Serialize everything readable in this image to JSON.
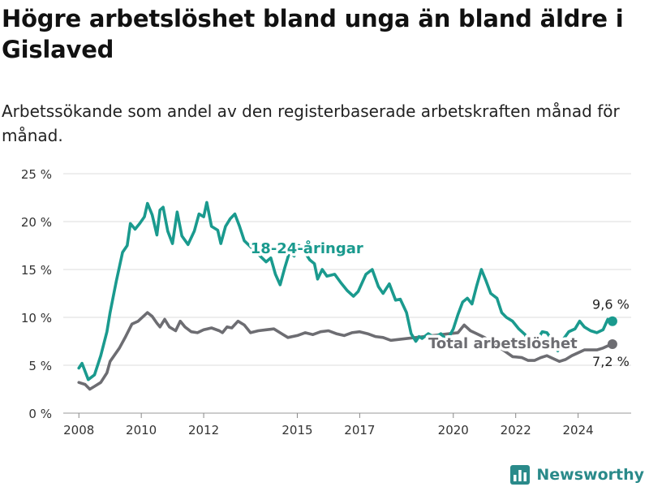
{
  "header": {
    "title": "Högre arbetslöshet bland unga än bland äldre i Gislaved",
    "subtitle": "Arbetssökande som andel av den registerbaserade arbetskraften månad för månad."
  },
  "brand": {
    "name": "Newsworthy",
    "icon": "bar-chart-icon",
    "color": "#2a8a8a"
  },
  "chart_data": {
    "type": "line",
    "ylim": [
      0,
      25
    ],
    "xlim": [
      2007.5,
      2025.7
    ],
    "y_ticks": [
      0,
      5,
      10,
      15,
      20,
      25
    ],
    "y_tick_labels": [
      "0 %",
      "5 %",
      "10 %",
      "15 %",
      "20 %",
      "25 %"
    ],
    "x_ticks": [
      2008,
      2010,
      2012,
      2015,
      2017,
      2020,
      2022,
      2024
    ],
    "x_tick_labels": [
      "2008",
      "2010",
      "2012",
      "2015",
      "2017",
      "2020",
      "2022",
      "2024"
    ],
    "grid": true,
    "series": [
      {
        "name": "Total arbetslöshet",
        "color": "#6d6d72",
        "end_label": "7,2 %",
        "points": [
          [
            2008.0,
            3.2
          ],
          [
            2008.2,
            3.0
          ],
          [
            2008.35,
            2.5
          ],
          [
            2008.5,
            2.8
          ],
          [
            2008.7,
            3.2
          ],
          [
            2008.9,
            4.2
          ],
          [
            2009.0,
            5.4
          ],
          [
            2009.3,
            6.8
          ],
          [
            2009.5,
            8.0
          ],
          [
            2009.7,
            9.3
          ],
          [
            2009.9,
            9.6
          ],
          [
            2010.1,
            10.2
          ],
          [
            2010.2,
            10.5
          ],
          [
            2010.35,
            10.1
          ],
          [
            2010.5,
            9.4
          ],
          [
            2010.6,
            9.0
          ],
          [
            2010.75,
            9.8
          ],
          [
            2010.9,
            9.0
          ],
          [
            2011.1,
            8.6
          ],
          [
            2011.25,
            9.6
          ],
          [
            2011.4,
            9.0
          ],
          [
            2011.6,
            8.5
          ],
          [
            2011.8,
            8.4
          ],
          [
            2012.0,
            8.7
          ],
          [
            2012.25,
            8.9
          ],
          [
            2012.5,
            8.6
          ],
          [
            2012.6,
            8.4
          ],
          [
            2012.75,
            9.0
          ],
          [
            2012.9,
            8.9
          ],
          [
            2013.1,
            9.6
          ],
          [
            2013.3,
            9.2
          ],
          [
            2013.5,
            8.4
          ],
          [
            2013.75,
            8.6
          ],
          [
            2014.0,
            8.7
          ],
          [
            2014.25,
            8.8
          ],
          [
            2014.5,
            8.3
          ],
          [
            2014.7,
            7.9
          ],
          [
            2015.0,
            8.1
          ],
          [
            2015.25,
            8.4
          ],
          [
            2015.5,
            8.2
          ],
          [
            2015.75,
            8.5
          ],
          [
            2016.0,
            8.6
          ],
          [
            2016.25,
            8.3
          ],
          [
            2016.5,
            8.1
          ],
          [
            2016.75,
            8.4
          ],
          [
            2017.0,
            8.5
          ],
          [
            2017.25,
            8.3
          ],
          [
            2017.5,
            8.0
          ],
          [
            2017.75,
            7.9
          ],
          [
            2018.0,
            7.6
          ],
          [
            2020.15,
            8.4
          ],
          [
            2020.35,
            9.2
          ],
          [
            2020.55,
            8.6
          ],
          [
            2020.75,
            8.3
          ],
          [
            2021.0,
            7.9
          ],
          [
            2021.25,
            7.4
          ],
          [
            2021.9,
            5.9
          ],
          [
            2022.2,
            5.8
          ],
          [
            2022.4,
            5.5
          ],
          [
            2022.6,
            5.5
          ],
          [
            2022.8,
            5.8
          ],
          [
            2023.0,
            6.0
          ],
          [
            2023.2,
            5.7
          ],
          [
            2023.4,
            5.4
          ],
          [
            2023.6,
            5.6
          ],
          [
            2023.8,
            6.0
          ],
          [
            2024.0,
            6.3
          ],
          [
            2024.2,
            6.6
          ],
          [
            2024.4,
            6.6
          ],
          [
            2024.6,
            6.6
          ],
          [
            2024.8,
            6.8
          ],
          [
            2025.0,
            7.1
          ],
          [
            2025.1,
            7.2
          ]
        ]
      },
      {
        "name": "18-24-åringar",
        "color": "#1a9a8e",
        "end_label": "9,6 %",
        "points": [
          [
            2008.0,
            4.7
          ],
          [
            2008.1,
            5.2
          ],
          [
            2008.3,
            3.5
          ],
          [
            2008.5,
            4.0
          ],
          [
            2008.7,
            6.0
          ],
          [
            2008.9,
            8.5
          ],
          [
            2009.0,
            10.5
          ],
          [
            2009.2,
            13.8
          ],
          [
            2009.4,
            16.8
          ],
          [
            2009.55,
            17.5
          ],
          [
            2009.65,
            19.8
          ],
          [
            2009.8,
            19.2
          ],
          [
            2009.95,
            19.8
          ],
          [
            2010.1,
            20.5
          ],
          [
            2010.2,
            21.9
          ],
          [
            2010.35,
            20.7
          ],
          [
            2010.5,
            18.6
          ],
          [
            2010.6,
            21.2
          ],
          [
            2010.7,
            21.5
          ],
          [
            2010.85,
            19.0
          ],
          [
            2011.0,
            17.7
          ],
          [
            2011.15,
            21.0
          ],
          [
            2011.3,
            18.5
          ],
          [
            2011.5,
            17.6
          ],
          [
            2011.7,
            19.0
          ],
          [
            2011.85,
            20.8
          ],
          [
            2012.0,
            20.5
          ],
          [
            2012.1,
            22.0
          ],
          [
            2012.25,
            19.5
          ],
          [
            2012.45,
            19.1
          ],
          [
            2012.55,
            17.7
          ],
          [
            2012.7,
            19.5
          ],
          [
            2012.85,
            20.3
          ],
          [
            2013.0,
            20.8
          ],
          [
            2013.15,
            19.5
          ],
          [
            2013.3,
            18.0
          ],
          [
            2014.0,
            15.8
          ],
          [
            2014.15,
            16.2
          ],
          [
            2014.3,
            14.5
          ],
          [
            2014.45,
            13.4
          ],
          [
            2014.6,
            15.2
          ],
          [
            2014.75,
            16.8
          ],
          [
            2014.9,
            16.4
          ],
          [
            2015.05,
            17.5
          ],
          [
            2015.2,
            17.0
          ],
          [
            2015.4,
            16.0
          ],
          [
            2015.55,
            15.6
          ],
          [
            2015.65,
            14.0
          ],
          [
            2015.8,
            15.0
          ],
          [
            2015.95,
            14.3
          ],
          [
            2016.2,
            14.5
          ],
          [
            2016.4,
            13.6
          ],
          [
            2016.6,
            12.8
          ],
          [
            2016.8,
            12.2
          ],
          [
            2016.95,
            12.7
          ],
          [
            2017.2,
            14.5
          ],
          [
            2017.4,
            15.0
          ],
          [
            2017.6,
            13.2
          ],
          [
            2017.75,
            12.5
          ],
          [
            2017.95,
            13.5
          ],
          [
            2018.15,
            11.8
          ],
          [
            2018.3,
            11.9
          ],
          [
            2018.5,
            10.5
          ],
          [
            2018.65,
            8.3
          ],
          [
            2018.8,
            7.5
          ],
          [
            2018.9,
            8.0
          ],
          [
            2019.0,
            7.8
          ],
          [
            2019.2,
            8.3
          ],
          [
            2019.4,
            7.9
          ],
          [
            2019.6,
            8.3
          ],
          [
            2019.8,
            7.6
          ],
          [
            2020.0,
            8.8
          ],
          [
            2020.15,
            10.3
          ],
          [
            2020.3,
            11.6
          ],
          [
            2020.45,
            12.0
          ],
          [
            2020.6,
            11.4
          ],
          [
            2020.75,
            13.3
          ],
          [
            2020.9,
            15.0
          ],
          [
            2021.05,
            13.8
          ],
          [
            2021.2,
            12.5
          ],
          [
            2021.4,
            12.0
          ],
          [
            2021.55,
            10.5
          ],
          [
            2021.7,
            10.0
          ],
          [
            2021.9,
            9.6
          ],
          [
            2022.1,
            8.8
          ],
          [
            2022.3,
            8.2
          ],
          [
            2022.5,
            7.0
          ],
          [
            2022.7,
            7.7
          ],
          [
            2022.85,
            8.5
          ],
          [
            2023.0,
            8.4
          ],
          [
            2023.2,
            7.5
          ],
          [
            2023.35,
            6.5
          ],
          [
            2023.5,
            7.6
          ],
          [
            2023.7,
            8.5
          ],
          [
            2023.9,
            8.8
          ],
          [
            2024.05,
            9.6
          ],
          [
            2024.2,
            9.0
          ],
          [
            2024.4,
            8.6
          ],
          [
            2024.6,
            8.4
          ],
          [
            2024.8,
            8.7
          ],
          [
            2024.95,
            9.8
          ],
          [
            2025.1,
            9.6
          ]
        ]
      }
    ],
    "labels": [
      {
        "series": 1,
        "text": "18-24-åringar",
        "at": [
          2013.5,
          16.7
        ]
      },
      {
        "series": 0,
        "text": "Total arbetslöshet",
        "at": [
          2019.2,
          6.8
        ]
      }
    ]
  }
}
